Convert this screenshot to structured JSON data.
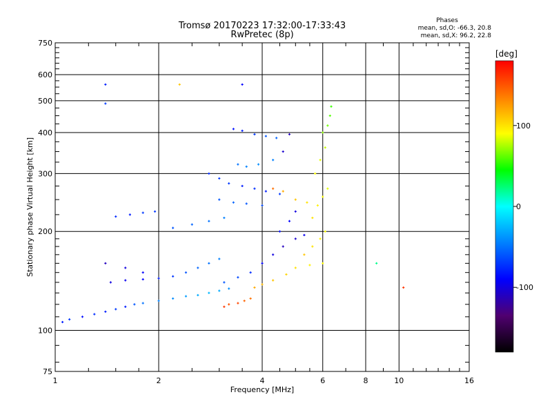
{
  "chart_data": {
    "type": "scatter",
    "title": "Tromsø 20170223 17:32:00-17:33:43",
    "subtitle": "RwPretec (8p)",
    "xlabel": "Frequency [MHz]",
    "ylabel": "Stationary phase Virtual Height [km]",
    "x_scale": "log",
    "y_scale": "log",
    "xlim": [
      1,
      16
    ],
    "ylim": [
      75,
      750
    ],
    "x_ticks": [
      1,
      2,
      4,
      6,
      8,
      10,
      16
    ],
    "y_ticks": [
      75,
      100,
      200,
      300,
      400,
      500,
      600,
      750
    ],
    "grid": true,
    "stats": {
      "heading": "Phases",
      "o_line": "mean, sd,O: -66.3, 20.8",
      "x_line": "mean, sd,X:  96.2, 22.8"
    },
    "colorbar": {
      "title": "[deg]",
      "range": [
        -180,
        180
      ],
      "ticks": [
        100,
        0,
        -100
      ],
      "colors": [
        "#ff0000",
        "#ff7f00",
        "#ffff00",
        "#00ff00",
        "#00ffff",
        "#0080ff",
        "#0000ff",
        "#500070",
        "#000000"
      ]
    },
    "series": [
      {
        "role": "traces",
        "points": [
          [
            1.05,
            106,
            -80
          ],
          [
            1.1,
            108,
            -70
          ],
          [
            1.2,
            110,
            -85
          ],
          [
            1.3,
            112,
            -75
          ],
          [
            1.4,
            114,
            -80
          ],
          [
            1.5,
            116,
            -70
          ],
          [
            1.6,
            118,
            -80
          ],
          [
            1.7,
            120,
            -60
          ],
          [
            1.8,
            121,
            -50
          ],
          [
            2.0,
            123,
            -45
          ],
          [
            2.2,
            125,
            -40
          ],
          [
            2.4,
            127,
            -35
          ],
          [
            2.6,
            128,
            -30
          ],
          [
            2.8,
            130,
            -25
          ],
          [
            3.0,
            132,
            -30
          ],
          [
            3.2,
            134,
            -40
          ],
          [
            1.45,
            140,
            -100
          ],
          [
            1.6,
            142,
            -95
          ],
          [
            1.8,
            143,
            -90
          ],
          [
            2.0,
            144,
            -80
          ],
          [
            2.2,
            146,
            -70
          ],
          [
            2.4,
            150,
            -60
          ],
          [
            2.6,
            155,
            -55
          ],
          [
            2.8,
            160,
            -50
          ],
          [
            3.0,
            165,
            -45
          ],
          [
            1.4,
            160,
            -110
          ],
          [
            1.6,
            155,
            -100
          ],
          [
            1.8,
            150,
            -90
          ],
          [
            1.5,
            222,
            -75
          ],
          [
            1.65,
            225,
            -80
          ],
          [
            1.8,
            228,
            -70
          ],
          [
            1.95,
            230,
            -70
          ],
          [
            2.2,
            205,
            -60
          ],
          [
            2.5,
            210,
            -55
          ],
          [
            2.8,
            215,
            -50
          ],
          [
            3.1,
            220,
            -45
          ],
          [
            2.8,
            300,
            -75
          ],
          [
            3.0,
            290,
            -70
          ],
          [
            3.2,
            280,
            -70
          ],
          [
            3.5,
            275,
            -80
          ],
          [
            3.8,
            270,
            -75
          ],
          [
            4.1,
            265,
            -80
          ],
          [
            4.5,
            260,
            -70
          ],
          [
            3.0,
            250,
            -60
          ],
          [
            3.3,
            245,
            -55
          ],
          [
            3.6,
            243,
            -60
          ],
          [
            4.0,
            240,
            -65
          ],
          [
            3.4,
            320,
            -50
          ],
          [
            3.6,
            315,
            -45
          ],
          [
            3.9,
            320,
            -40
          ],
          [
            4.3,
            330,
            -45
          ],
          [
            3.3,
            410,
            -85
          ],
          [
            3.5,
            405,
            -80
          ],
          [
            3.8,
            395,
            -70
          ],
          [
            4.1,
            390,
            -60
          ],
          [
            4.4,
            385,
            -55
          ],
          [
            3.1,
            140,
            -60
          ],
          [
            3.4,
            145,
            -65
          ],
          [
            3.7,
            150,
            -75
          ],
          [
            4.0,
            160,
            -90
          ],
          [
            4.3,
            170,
            -100
          ],
          [
            4.6,
            180,
            -110
          ],
          [
            5.0,
            190,
            -105
          ],
          [
            5.3,
            195,
            -95
          ],
          [
            4.5,
            200,
            -85
          ],
          [
            4.8,
            215,
            -90
          ],
          [
            5.0,
            230,
            -100
          ],
          [
            4.6,
            350,
            -105
          ],
          [
            4.8,
            395,
            -110
          ],
          [
            3.1,
            118,
            160
          ],
          [
            3.2,
            120,
            150
          ],
          [
            3.4,
            121,
            155
          ],
          [
            3.55,
            123,
            145
          ],
          [
            3.7,
            125,
            140
          ],
          [
            3.8,
            135,
            120
          ],
          [
            4.0,
            138,
            115
          ],
          [
            4.3,
            142,
            110
          ],
          [
            4.7,
            148,
            105
          ],
          [
            5.0,
            155,
            100
          ],
          [
            5.5,
            158,
            95
          ],
          [
            6.0,
            160,
            90
          ],
          [
            5.3,
            170,
            110
          ],
          [
            5.6,
            180,
            100
          ],
          [
            5.9,
            190,
            95
          ],
          [
            6.1,
            200,
            90
          ],
          [
            5.6,
            220,
            100
          ],
          [
            5.8,
            240,
            95
          ],
          [
            6.0,
            255,
            90
          ],
          [
            6.2,
            270,
            85
          ],
          [
            5.7,
            300,
            90
          ],
          [
            5.9,
            330,
            85
          ],
          [
            6.1,
            360,
            80
          ],
          [
            6.0,
            400,
            70
          ],
          [
            6.2,
            420,
            65
          ],
          [
            6.3,
            450,
            60
          ],
          [
            6.35,
            480,
            55
          ],
          [
            4.3,
            270,
            140
          ],
          [
            4.6,
            265,
            120
          ],
          [
            5.0,
            250,
            110
          ],
          [
            5.4,
            245,
            100
          ],
          [
            1.4,
            560,
            -80
          ],
          [
            1.4,
            490,
            -70
          ],
          [
            2.3,
            560,
            110
          ],
          [
            3.5,
            560,
            -90
          ],
          [
            8.6,
            160,
            20
          ],
          [
            10.3,
            135,
            160
          ]
        ]
      }
    ]
  }
}
